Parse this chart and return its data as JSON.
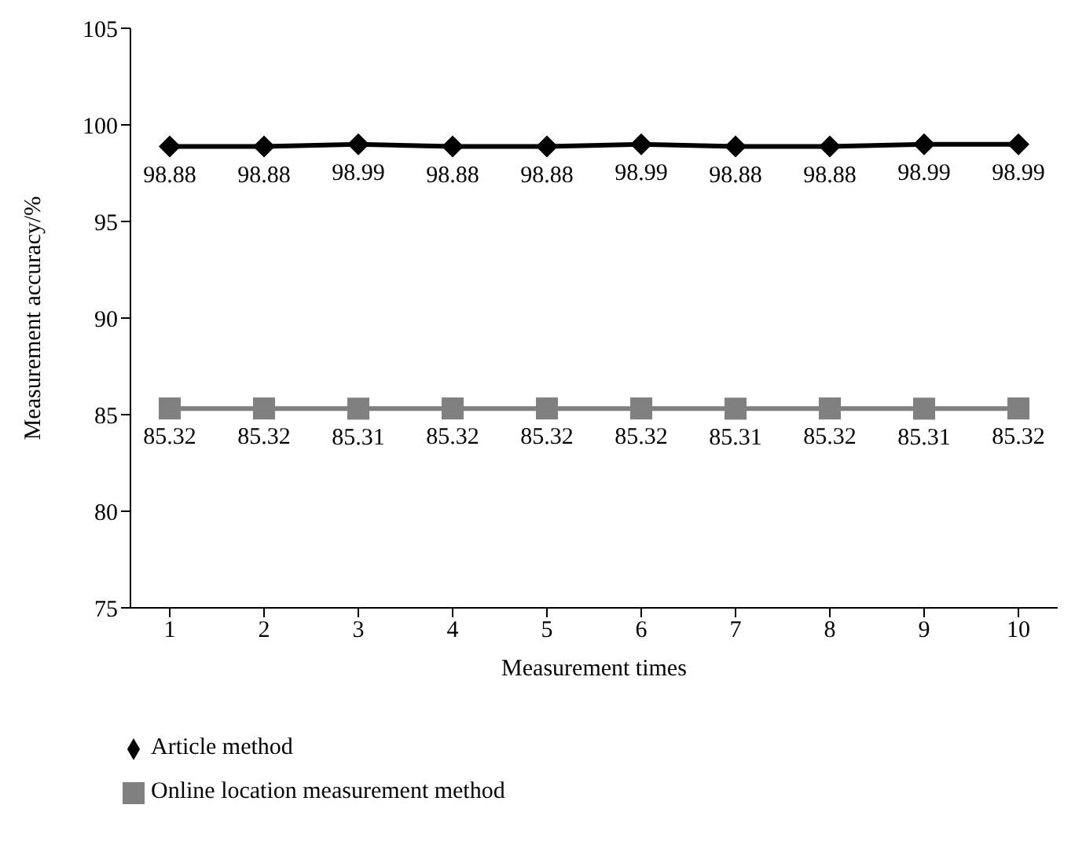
{
  "chart_data": {
    "type": "line",
    "xlabel": "Measurement times",
    "ylabel": "Measurement accuracy/%",
    "categories": [
      "1",
      "2",
      "3",
      "4",
      "5",
      "6",
      "7",
      "8",
      "9",
      "10"
    ],
    "series": [
      {
        "name": "Article method",
        "color": "#000000",
        "marker": "diamond",
        "values": [
          98.88,
          98.88,
          98.99,
          98.88,
          98.88,
          98.99,
          98.88,
          98.88,
          98.99,
          98.99
        ]
      },
      {
        "name": "Online location measurement method",
        "color": "#808080",
        "marker": "square",
        "values": [
          85.32,
          85.32,
          85.31,
          85.32,
          85.32,
          85.32,
          85.31,
          85.32,
          85.31,
          85.32
        ]
      }
    ],
    "ylim": [
      75,
      105
    ],
    "yticks": [
      75,
      80,
      85,
      90,
      95,
      100,
      105
    ],
    "data_labels": true,
    "grid": false,
    "legend": "bottom"
  }
}
